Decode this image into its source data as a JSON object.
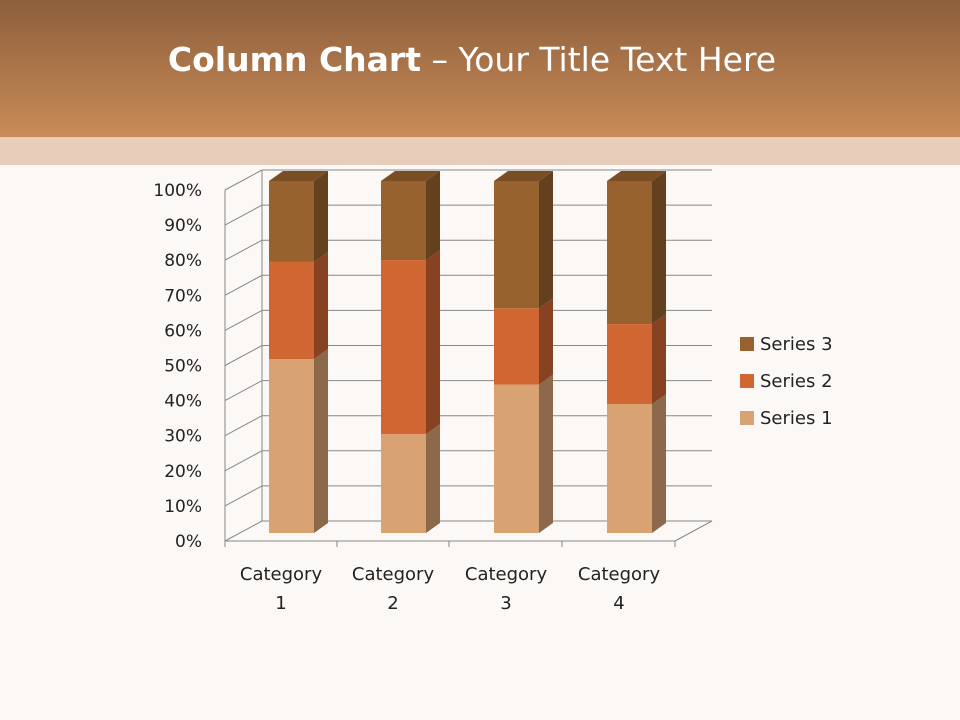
{
  "slide": {
    "title_bold": "Column Chart",
    "title_rest": " – Your Title Text Here"
  },
  "chart_data": {
    "type": "bar",
    "stacked": "percent",
    "three_d": true,
    "categories": [
      "Category 1",
      "Category 2",
      "Category 3",
      "Category 4"
    ],
    "series": [
      {
        "name": "Series 1",
        "values": [
          4.3,
          2.5,
          3.5,
          4.5
        ],
        "color": "#d9a273"
      },
      {
        "name": "Series 2",
        "values": [
          2.4,
          4.4,
          1.8,
          2.8
        ],
        "color": "#d06632"
      },
      {
        "name": "Series 3",
        "values": [
          2,
          2,
          3,
          5
        ],
        "color": "#98622e"
      }
    ],
    "yticks": [
      "0%",
      "10%",
      "20%",
      "30%",
      "40%",
      "50%",
      "60%",
      "70%",
      "80%",
      "90%",
      "100%"
    ],
    "ylim": [
      0,
      100
    ],
    "grid": true,
    "legend": "right"
  }
}
